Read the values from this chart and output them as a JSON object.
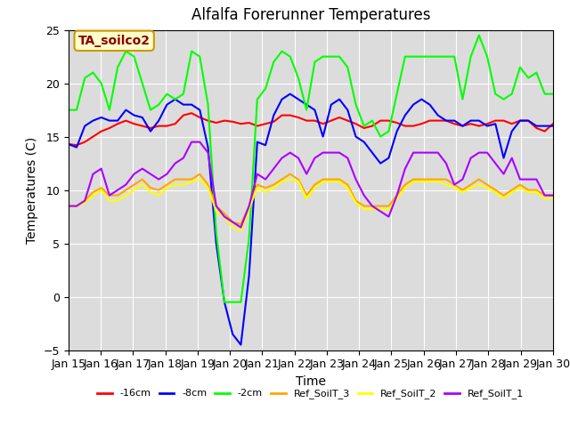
{
  "title": "Alfalfa Forerunner Temperatures",
  "xlabel": "Time",
  "ylabel": "Temperatures (C)",
  "ylim": [
    -5,
    25
  ],
  "xlim": [
    0,
    15
  ],
  "background_color": "#dcdcdc",
  "annotation_text": "TA_soilco2",
  "annotation_color": "#8b0000",
  "annotation_bg": "#ffffcc",
  "tick_labels": [
    "Jan 15",
    "Jan 16",
    "Jan 17",
    "Jan 18",
    "Jan 19",
    "Jan 20",
    "Jan 21",
    "Jan 22",
    "Jan 23",
    "Jan 24",
    "Jan 25",
    "Jan 26",
    "Jan 27",
    "Jan 28",
    "Jan 29",
    "Jan 30"
  ],
  "series": {
    "-16cm": {
      "color": "#ff0000",
      "lw": 1.5,
      "data": [
        14.3,
        14.2,
        14.5,
        15.0,
        15.5,
        15.8,
        16.2,
        16.5,
        16.2,
        16.0,
        15.8,
        16.0,
        16.0,
        16.2,
        17.0,
        17.2,
        16.8,
        16.5,
        16.3,
        16.5,
        16.4,
        16.2,
        16.3,
        16.0,
        16.2,
        16.4,
        17.0,
        17.0,
        16.8,
        16.5,
        16.5,
        16.2,
        16.5,
        16.8,
        16.5,
        16.2,
        15.8,
        16.0,
        16.5,
        16.5,
        16.3,
        16.0,
        16.0,
        16.2,
        16.5,
        16.5,
        16.5,
        16.2,
        16.0,
        16.2,
        16.0,
        16.2,
        16.5,
        16.5,
        16.2,
        16.5,
        16.5,
        15.8,
        15.5,
        16.2
      ]
    },
    "-8cm": {
      "color": "#0000ff",
      "lw": 1.5,
      "data": [
        14.3,
        14.0,
        16.0,
        16.5,
        16.8,
        16.5,
        16.5,
        17.5,
        17.0,
        16.8,
        15.5,
        16.5,
        18.0,
        18.5,
        18.0,
        18.0,
        17.5,
        14.0,
        5.0,
        -0.5,
        -3.5,
        -4.5,
        2.0,
        14.5,
        14.2,
        17.0,
        18.5,
        19.0,
        18.5,
        18.0,
        17.5,
        15.0,
        18.0,
        18.5,
        17.5,
        15.0,
        14.5,
        13.5,
        12.5,
        13.0,
        15.5,
        17.0,
        18.0,
        18.5,
        18.0,
        17.0,
        16.5,
        16.5,
        16.0,
        16.5,
        16.5,
        16.0,
        16.2,
        13.0,
        15.5,
        16.5,
        16.5,
        16.0,
        16.0,
        16.0
      ]
    },
    "-2cm": {
      "color": "#00ff00",
      "lw": 1.5,
      "data": [
        17.5,
        17.5,
        20.5,
        21.0,
        20.0,
        17.5,
        21.5,
        23.0,
        22.5,
        20.0,
        17.5,
        18.0,
        19.0,
        18.5,
        19.0,
        23.0,
        22.5,
        18.0,
        6.0,
        -0.5,
        -0.5,
        -0.5,
        5.5,
        18.5,
        19.5,
        22.0,
        23.0,
        22.5,
        20.5,
        17.5,
        22.0,
        22.5,
        22.5,
        22.5,
        21.5,
        18.0,
        16.0,
        16.5,
        15.0,
        15.5,
        19.0,
        22.5,
        22.5,
        22.5,
        22.5,
        22.5,
        22.5,
        22.5,
        18.5,
        22.5,
        24.5,
        22.5,
        19.0,
        18.5,
        19.0,
        21.5,
        20.5,
        21.0,
        19.0,
        19.0
      ]
    },
    "Ref_SoilT_3": {
      "color": "#ffa500",
      "lw": 1.5,
      "data": [
        8.5,
        8.5,
        9.0,
        9.8,
        10.2,
        9.5,
        9.5,
        10.0,
        10.5,
        11.0,
        10.2,
        10.0,
        10.5,
        11.0,
        11.0,
        11.0,
        11.5,
        10.5,
        8.5,
        7.8,
        7.0,
        6.8,
        8.5,
        10.5,
        10.2,
        10.5,
        11.0,
        11.5,
        11.0,
        9.5,
        10.5,
        11.0,
        11.0,
        11.0,
        10.5,
        9.0,
        8.5,
        8.5,
        8.5,
        8.5,
        9.5,
        10.5,
        11.0,
        11.0,
        11.0,
        11.0,
        11.0,
        10.5,
        10.0,
        10.5,
        11.0,
        10.5,
        10.0,
        9.5,
        10.0,
        10.5,
        10.0,
        10.0,
        9.5,
        9.5
      ]
    },
    "Ref_SoilT_2": {
      "color": "#ffff00",
      "lw": 1.5,
      "data": [
        8.5,
        8.5,
        8.8,
        9.5,
        10.0,
        9.0,
        9.0,
        9.5,
        10.0,
        10.5,
        9.8,
        9.5,
        10.2,
        10.5,
        10.5,
        10.8,
        11.0,
        10.2,
        8.0,
        7.5,
        6.5,
        6.2,
        8.2,
        10.2,
        9.8,
        10.2,
        10.8,
        11.0,
        10.8,
        9.2,
        10.2,
        10.8,
        10.8,
        10.8,
        10.2,
        8.8,
        8.2,
        8.2,
        8.2,
        8.2,
        9.2,
        10.2,
        10.8,
        10.8,
        10.8,
        10.8,
        10.5,
        10.2,
        9.8,
        10.2,
        10.5,
        10.2,
        9.8,
        9.2,
        9.8,
        10.2,
        9.8,
        9.8,
        9.2,
        9.2
      ]
    },
    "Ref_SoilT_1": {
      "color": "#aa00ff",
      "lw": 1.5,
      "data": [
        8.5,
        8.5,
        9.0,
        11.5,
        12.0,
        9.5,
        10.0,
        10.5,
        11.5,
        12.0,
        11.5,
        11.0,
        11.5,
        12.5,
        13.0,
        14.5,
        14.5,
        13.5,
        8.5,
        7.5,
        7.0,
        6.5,
        8.5,
        11.5,
        11.0,
        12.0,
        13.0,
        13.5,
        13.0,
        11.5,
        13.0,
        13.5,
        13.5,
        13.5,
        13.0,
        11.0,
        9.5,
        8.5,
        8.0,
        7.5,
        9.5,
        12.0,
        13.5,
        13.5,
        13.5,
        13.5,
        12.5,
        10.5,
        11.0,
        13.0,
        13.5,
        13.5,
        12.5,
        11.5,
        13.0,
        11.0,
        11.0,
        11.0,
        9.5,
        9.5
      ]
    }
  },
  "legend": [
    {
      "label": "-16cm",
      "color": "#ff0000"
    },
    {
      "label": "-8cm",
      "color": "#0000ff"
    },
    {
      "label": "-2cm",
      "color": "#00ff00"
    },
    {
      "label": "Ref_SoilT_3",
      "color": "#ffa500"
    },
    {
      "label": "Ref_SoilT_2",
      "color": "#ffff00"
    },
    {
      "label": "Ref_SoilT_1",
      "color": "#aa00ff"
    }
  ]
}
